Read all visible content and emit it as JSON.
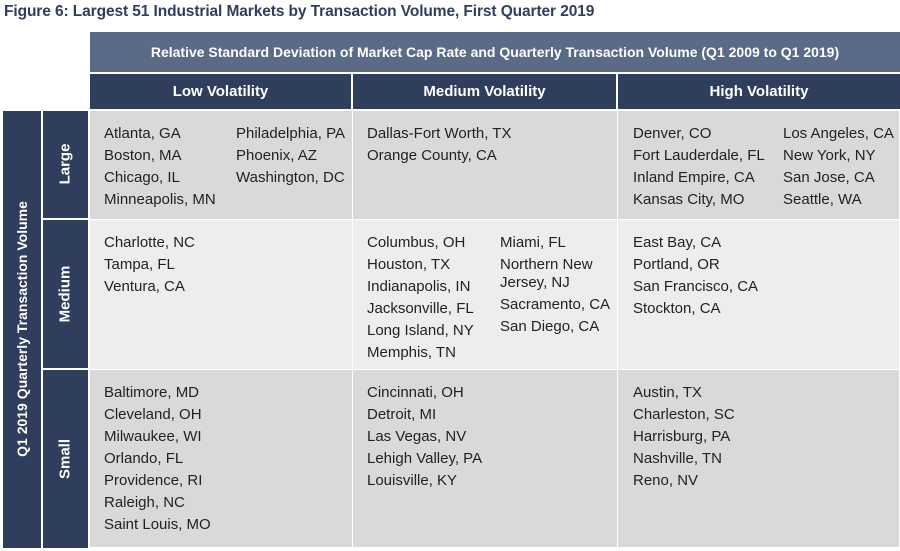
{
  "figure_title": "Figure 6: Largest 51 Industrial Markets by Transaction Volume, First Quarter 2019",
  "top_header": "Relative Standard Deviation of Market Cap Rate and Quarterly Transaction Volume (Q1 2009 to Q1 2019)",
  "row_axis_label": "Q1 2019 Quarterly Transaction Volume",
  "columns": [
    "Low Volatility",
    "Medium Volatility",
    "High Volatility"
  ],
  "rows": [
    {
      "label": "Large",
      "cells": [
        [
          [
            "Atlanta, GA",
            "Boston, MA",
            "Chicago, IL",
            "Minneapolis, MN"
          ],
          [
            "Philadelphia, PA",
            "Phoenix, AZ",
            "Washington, DC"
          ]
        ],
        [
          [
            "Dallas-Fort Worth, TX",
            "Orange County, CA"
          ]
        ],
        [
          [
            "Denver, CO",
            "Fort Lauderdale, FL",
            "Inland Empire, CA",
            "Kansas City, MO"
          ],
          [
            "Los Angeles, CA",
            "New York, NY",
            "San Jose, CA",
            "Seattle, WA"
          ]
        ]
      ]
    },
    {
      "label": "Medium",
      "cells": [
        [
          [
            "Charlotte, NC",
            "Tampa, FL",
            "Ventura, CA"
          ]
        ],
        [
          [
            "Columbus, OH",
            "Houston, TX",
            "Indianapolis, IN",
            "Jacksonville, FL",
            "Long Island, NY",
            "Memphis, TN"
          ],
          [
            "Miami, FL",
            "Northern New Jersey, NJ",
            "Sacramento, CA",
            "San Diego, CA"
          ]
        ],
        [
          [
            "East Bay, CA",
            "Portland, OR",
            "San Francisco, CA",
            "Stockton, CA"
          ]
        ]
      ]
    },
    {
      "label": "Small",
      "cells": [
        [
          [
            "Baltimore, MD",
            "Cleveland, OH",
            "Milwaukee, WI",
            "Orlando, FL",
            "Providence, RI",
            "Raleigh, NC",
            "Saint Louis, MO"
          ]
        ],
        [
          [
            "Cincinnati, OH",
            "Detroit, MI",
            "Las Vegas, NV",
            "Lehigh Valley, PA",
            "Louisville, KY"
          ]
        ],
        [
          [
            "Austin, TX",
            "Charleston, SC",
            "Harrisburg, PA",
            "Nashville, TN",
            "Reno, NV"
          ]
        ]
      ]
    }
  ],
  "colors": {
    "dark_navy": "#2f3e5c",
    "slate_header": "#5b6a86",
    "cell_grey": "#d9d9d9",
    "cell_light": "#ededed",
    "title_text": "#2f3e5c"
  }
}
